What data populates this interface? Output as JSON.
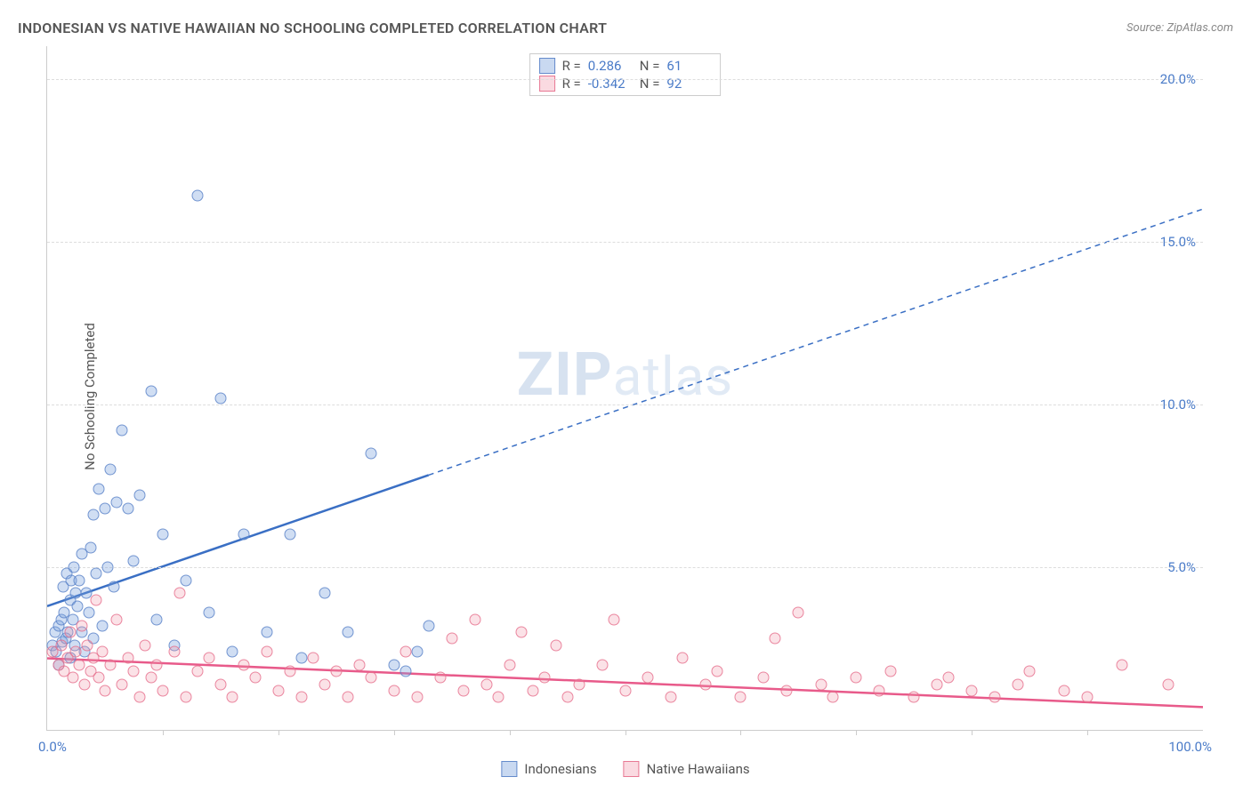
{
  "title": "INDONESIAN VS NATIVE HAWAIIAN NO SCHOOLING COMPLETED CORRELATION CHART",
  "source_label": "Source:",
  "source_value": "ZipAtlas.com",
  "ylabel": "No Schooling Completed",
  "watermark_bold": "ZIP",
  "watermark_rest": "atlas",
  "chart": {
    "type": "scatter",
    "xlim": [
      0,
      100
    ],
    "ylim": [
      0,
      21
    ],
    "ytick_values": [
      5,
      10,
      15,
      20
    ],
    "ytick_labels": [
      "5.0%",
      "10.0%",
      "15.0%",
      "20.0%"
    ],
    "xtick_minor_positions": [
      10,
      20,
      30,
      40,
      50,
      60,
      70,
      80,
      90
    ],
    "xtick_left": "0.0%",
    "xtick_right": "100.0%",
    "grid_color": "#dddddd",
    "axis_color": "#cccccc",
    "background": "#ffffff",
    "series": [
      {
        "name": "Indonesians",
        "color_fill": "rgba(120,160,220,0.35)",
        "color_stroke": "rgba(90,130,200,0.8)",
        "R": "0.286",
        "N": "61",
        "trend": {
          "x1": 0,
          "y1": 3.8,
          "x2": 100,
          "y2": 16.0,
          "solid_until_x": 33,
          "color": "#3a6fc4"
        },
        "points": [
          [
            0.5,
            2.6
          ],
          [
            0.7,
            3.0
          ],
          [
            0.8,
            2.4
          ],
          [
            1.0,
            3.2
          ],
          [
            1.0,
            2.0
          ],
          [
            1.2,
            3.4
          ],
          [
            1.3,
            2.7
          ],
          [
            1.4,
            4.4
          ],
          [
            1.5,
            3.6
          ],
          [
            1.6,
            2.8
          ],
          [
            1.7,
            4.8
          ],
          [
            1.8,
            3.0
          ],
          [
            2.0,
            4.0
          ],
          [
            2.0,
            2.2
          ],
          [
            2.1,
            4.6
          ],
          [
            2.2,
            3.4
          ],
          [
            2.3,
            5.0
          ],
          [
            2.4,
            2.6
          ],
          [
            2.5,
            4.2
          ],
          [
            2.6,
            3.8
          ],
          [
            2.8,
            4.6
          ],
          [
            3.0,
            3.0
          ],
          [
            3.0,
            5.4
          ],
          [
            3.2,
            2.4
          ],
          [
            3.4,
            4.2
          ],
          [
            3.6,
            3.6
          ],
          [
            3.8,
            5.6
          ],
          [
            4.0,
            2.8
          ],
          [
            4.0,
            6.6
          ],
          [
            4.2,
            4.8
          ],
          [
            4.5,
            7.4
          ],
          [
            4.8,
            3.2
          ],
          [
            5.0,
            6.8
          ],
          [
            5.2,
            5.0
          ],
          [
            5.5,
            8.0
          ],
          [
            5.8,
            4.4
          ],
          [
            6.0,
            7.0
          ],
          [
            6.5,
            9.2
          ],
          [
            7.0,
            6.8
          ],
          [
            7.5,
            5.2
          ],
          [
            8.0,
            7.2
          ],
          [
            9.0,
            10.4
          ],
          [
            9.5,
            3.4
          ],
          [
            10.0,
            6.0
          ],
          [
            11.0,
            2.6
          ],
          [
            12.0,
            4.6
          ],
          [
            13.0,
            16.4
          ],
          [
            14.0,
            3.6
          ],
          [
            15.0,
            10.2
          ],
          [
            16.0,
            2.4
          ],
          [
            17.0,
            6.0
          ],
          [
            19.0,
            3.0
          ],
          [
            21.0,
            6.0
          ],
          [
            22.0,
            2.2
          ],
          [
            24.0,
            4.2
          ],
          [
            26.0,
            3.0
          ],
          [
            28.0,
            8.5
          ],
          [
            30.0,
            2.0
          ],
          [
            31.0,
            1.8
          ],
          [
            32.0,
            2.4
          ],
          [
            33.0,
            3.2
          ]
        ]
      },
      {
        "name": "Native Hawaiians",
        "color_fill": "rgba(240,150,170,0.28)",
        "color_stroke": "rgba(230,110,140,0.8)",
        "R": "-0.342",
        "N": "92",
        "trend": {
          "x1": 0,
          "y1": 2.2,
          "x2": 100,
          "y2": 0.7,
          "solid_until_x": 100,
          "color": "#e85a8a"
        },
        "points": [
          [
            0.5,
            2.4
          ],
          [
            1.0,
            2.0
          ],
          [
            1.2,
            2.6
          ],
          [
            1.5,
            1.8
          ],
          [
            1.8,
            2.2
          ],
          [
            2.0,
            3.0
          ],
          [
            2.2,
            1.6
          ],
          [
            2.5,
            2.4
          ],
          [
            2.8,
            2.0
          ],
          [
            3.0,
            3.2
          ],
          [
            3.2,
            1.4
          ],
          [
            3.5,
            2.6
          ],
          [
            3.8,
            1.8
          ],
          [
            4.0,
            2.2
          ],
          [
            4.2,
            4.0
          ],
          [
            4.5,
            1.6
          ],
          [
            4.8,
            2.4
          ],
          [
            5.0,
            1.2
          ],
          [
            5.5,
            2.0
          ],
          [
            6.0,
            3.4
          ],
          [
            6.5,
            1.4
          ],
          [
            7.0,
            2.2
          ],
          [
            7.5,
            1.8
          ],
          [
            8.0,
            1.0
          ],
          [
            8.5,
            2.6
          ],
          [
            9.0,
            1.6
          ],
          [
            9.5,
            2.0
          ],
          [
            10.0,
            1.2
          ],
          [
            11.0,
            2.4
          ],
          [
            11.5,
            4.2
          ],
          [
            12.0,
            1.0
          ],
          [
            13.0,
            1.8
          ],
          [
            14.0,
            2.2
          ],
          [
            15.0,
            1.4
          ],
          [
            16.0,
            1.0
          ],
          [
            17.0,
            2.0
          ],
          [
            18.0,
            1.6
          ],
          [
            19.0,
            2.4
          ],
          [
            20.0,
            1.2
          ],
          [
            21.0,
            1.8
          ],
          [
            22.0,
            1.0
          ],
          [
            23.0,
            2.2
          ],
          [
            24.0,
            1.4
          ],
          [
            25.0,
            1.8
          ],
          [
            26.0,
            1.0
          ],
          [
            27.0,
            2.0
          ],
          [
            28.0,
            1.6
          ],
          [
            30.0,
            1.2
          ],
          [
            31.0,
            2.4
          ],
          [
            32.0,
            1.0
          ],
          [
            34.0,
            1.6
          ],
          [
            35.0,
            2.8
          ],
          [
            36.0,
            1.2
          ],
          [
            37.0,
            3.4
          ],
          [
            38.0,
            1.4
          ],
          [
            39.0,
            1.0
          ],
          [
            40.0,
            2.0
          ],
          [
            41.0,
            3.0
          ],
          [
            42.0,
            1.2
          ],
          [
            43.0,
            1.6
          ],
          [
            44.0,
            2.6
          ],
          [
            45.0,
            1.0
          ],
          [
            46.0,
            1.4
          ],
          [
            48.0,
            2.0
          ],
          [
            49.0,
            3.4
          ],
          [
            50.0,
            1.2
          ],
          [
            52.0,
            1.6
          ],
          [
            54.0,
            1.0
          ],
          [
            55.0,
            2.2
          ],
          [
            57.0,
            1.4
          ],
          [
            58.0,
            1.8
          ],
          [
            60.0,
            1.0
          ],
          [
            62.0,
            1.6
          ],
          [
            63.0,
            2.8
          ],
          [
            64.0,
            1.2
          ],
          [
            65.0,
            3.6
          ],
          [
            67.0,
            1.4
          ],
          [
            68.0,
            1.0
          ],
          [
            70.0,
            1.6
          ],
          [
            72.0,
            1.2
          ],
          [
            73.0,
            1.8
          ],
          [
            75.0,
            1.0
          ],
          [
            77.0,
            1.4
          ],
          [
            78.0,
            1.6
          ],
          [
            80.0,
            1.2
          ],
          [
            82.0,
            1.0
          ],
          [
            84.0,
            1.4
          ],
          [
            85.0,
            1.8
          ],
          [
            88.0,
            1.2
          ],
          [
            90.0,
            1.0
          ],
          [
            93.0,
            2.0
          ],
          [
            97.0,
            1.4
          ]
        ]
      }
    ]
  },
  "legend_top": {
    "R_label": "R =",
    "N_label": "N ="
  },
  "legend_bottom": [
    {
      "label": "Indonesians",
      "swatch": "blue"
    },
    {
      "label": "Native Hawaiians",
      "swatch": "pink"
    }
  ]
}
